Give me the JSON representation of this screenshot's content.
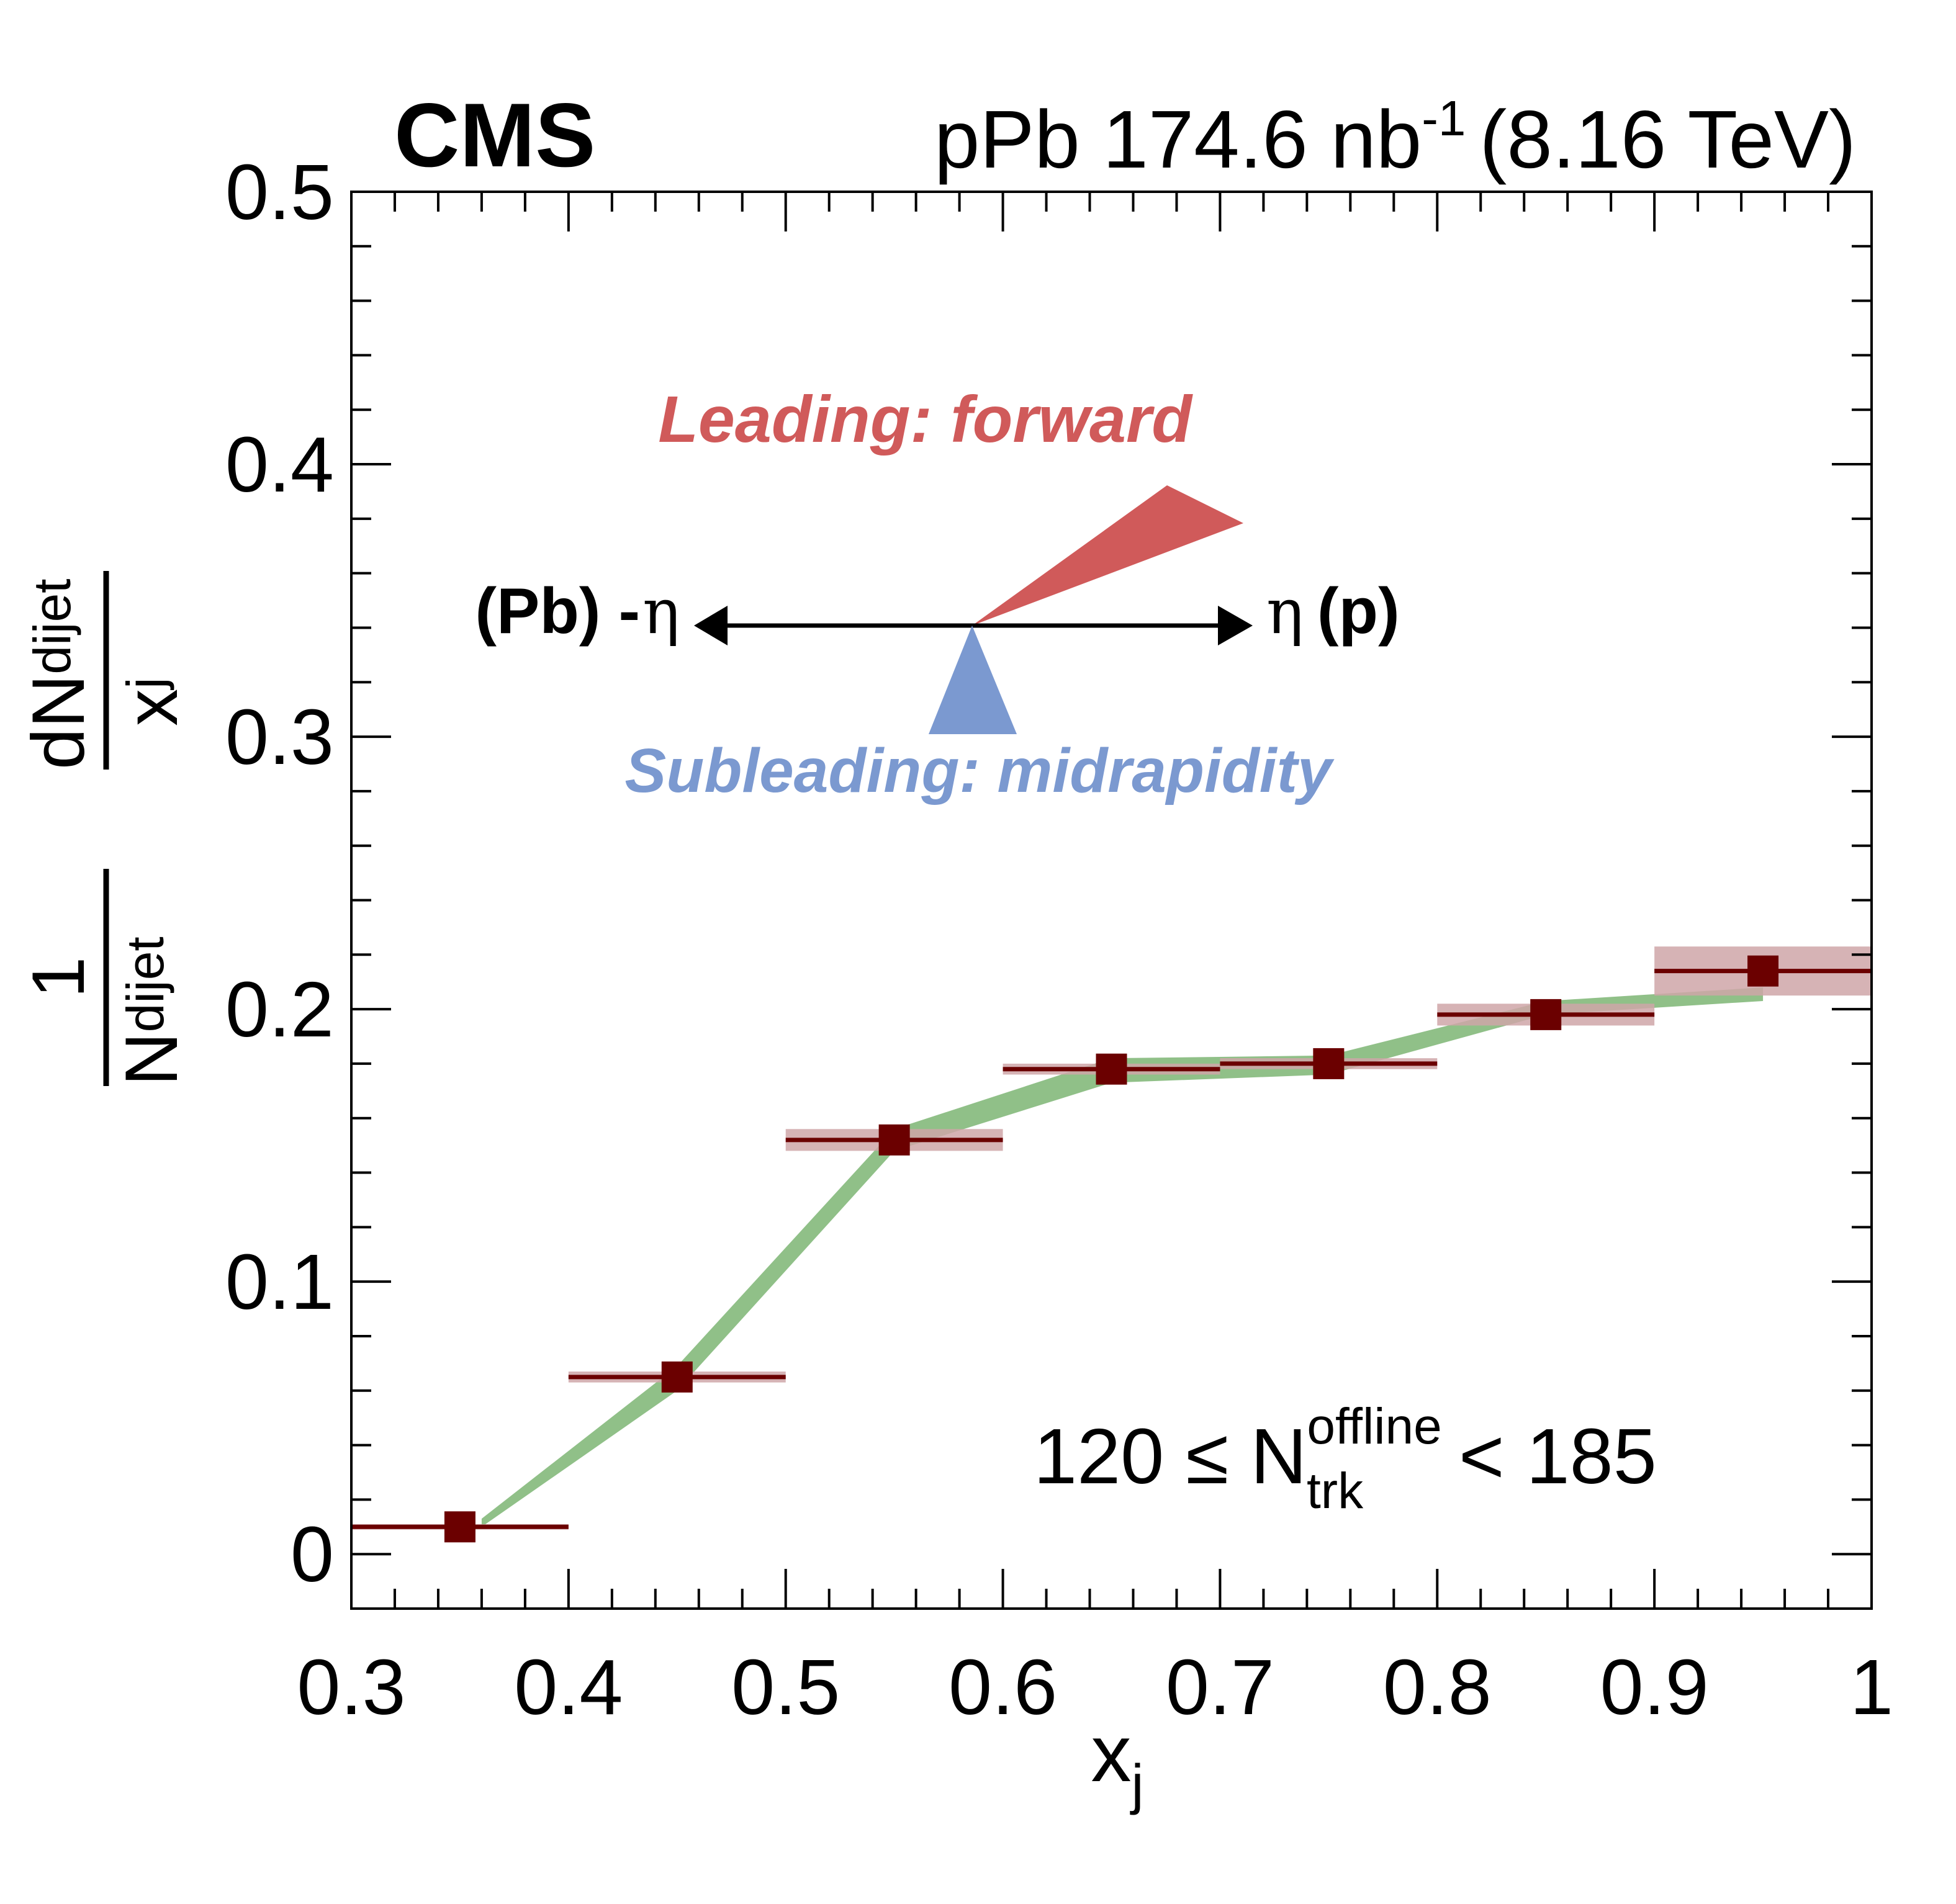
{
  "header": {
    "experiment": "CMS",
    "lumi_main": "pPb 174.6 nb",
    "lumi_exp": "-1",
    "energy": "(8.16 TeV)"
  },
  "axes": {
    "xlabel_main": "x",
    "xlabel_sub": "j",
    "ylabel": {
      "numer_one": "1",
      "denom_n": "N",
      "denom_sub": "dijet",
      "frac_num_d": "dN",
      "frac_num_sub": "dijet",
      "frac_den_x": "x",
      "frac_den_sub": "j"
    }
  },
  "diagram": {
    "leading_label": "Leading: forward",
    "subleading_label": "Subleading: midrapidity",
    "left_label_bold": "(Pb) -",
    "left_label_eta": "η",
    "right_label_eta": "η",
    "right_label_bold": "(p)",
    "leading_color": "#d05a5a",
    "subleading_color": "#7b99d0"
  },
  "annotation": {
    "prefix": "120 ≤ N",
    "sup": "offline",
    "sub": "trk",
    "suffix": "< 185"
  },
  "colors": {
    "marker": "#6b0000",
    "syst_box": "#cfa6a8",
    "model_band": "#90c088"
  },
  "chart_data": {
    "type": "scatter",
    "xlim": [
      0.3,
      1.0
    ],
    "ylim": [
      -0.02,
      0.5
    ],
    "x_ticks": [
      "0.3",
      "0.4",
      "0.5",
      "0.6",
      "0.7",
      "0.8",
      "0.9",
      "1"
    ],
    "y_ticks": [
      "0",
      "0.1",
      "0.2",
      "0.3",
      "0.4",
      "0.5"
    ],
    "grid": false,
    "data": [
      {
        "x_low": 0.3,
        "x_high": 0.4,
        "x": 0.35,
        "y": 0.01,
        "syst": 0.001
      },
      {
        "x_low": 0.4,
        "x_high": 0.5,
        "x": 0.45,
        "y": 0.065,
        "syst": 0.002
      },
      {
        "x_low": 0.5,
        "x_high": 0.6,
        "x": 0.55,
        "y": 0.152,
        "syst": 0.004
      },
      {
        "x_low": 0.6,
        "x_high": 0.7,
        "x": 0.65,
        "y": 0.178,
        "syst": 0.002
      },
      {
        "x_low": 0.7,
        "x_high": 0.8,
        "x": 0.75,
        "y": 0.18,
        "syst": 0.002
      },
      {
        "x_low": 0.8,
        "x_high": 0.9,
        "x": 0.85,
        "y": 0.198,
        "syst": 0.004
      },
      {
        "x_low": 0.9,
        "x_high": 1.0,
        "x": 0.95,
        "y": 0.214,
        "syst": 0.009
      }
    ],
    "band": [
      {
        "x": 0.36,
        "low": 0.01,
        "high": 0.013
      },
      {
        "x": 0.45,
        "low": 0.06,
        "high": 0.069
      },
      {
        "x": 0.55,
        "low": 0.148,
        "high": 0.156
      },
      {
        "x": 0.65,
        "low": 0.173,
        "high": 0.182
      },
      {
        "x": 0.75,
        "low": 0.176,
        "high": 0.183
      },
      {
        "x": 0.85,
        "low": 0.198,
        "high": 0.203
      },
      {
        "x": 0.95,
        "low": 0.203,
        "high": 0.208
      }
    ]
  }
}
